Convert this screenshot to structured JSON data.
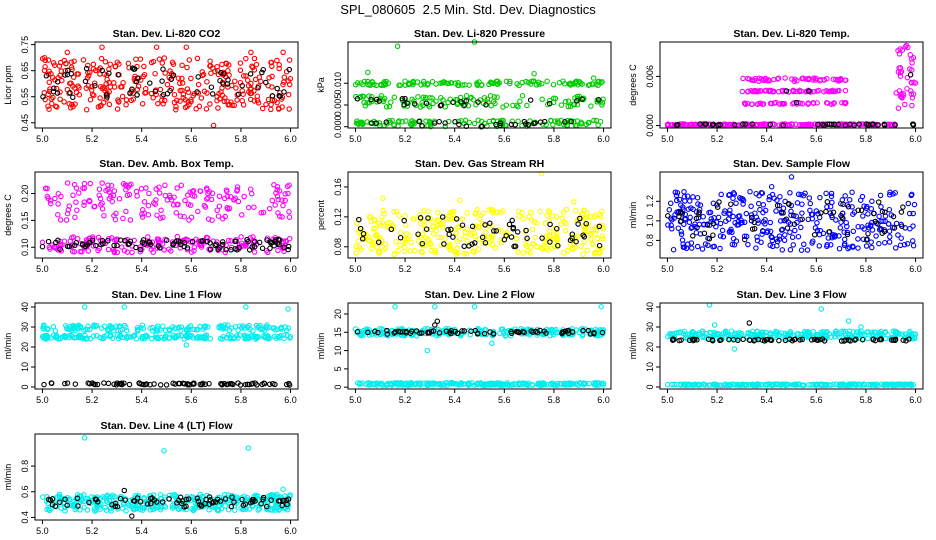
{
  "page_title": "SPL_080605  2.5 Min. Std. Dev. Diagnostics",
  "colors": {
    "red": "#ff0000",
    "green": "#00cc00",
    "magenta": "#ff00ff",
    "yellow": "#ffff00",
    "blue": "#0000ff",
    "cyan": "#00eeee",
    "black": "#000000"
  },
  "chart_data": [
    {
      "type": "scatter",
      "title": "Stan. Dev. Li-820 CO2",
      "ylabel": "Licor ppm",
      "xlabel": "",
      "xlim": [
        4.97,
        6.03
      ],
      "ylim": [
        0.43,
        0.76
      ],
      "xticks": [
        "5.0",
        "5.2",
        "5.4",
        "5.6",
        "5.8",
        "6.0"
      ],
      "yticks": [
        "0.45",
        "0.55",
        "0.65",
        "0.75"
      ],
      "series": [
        {
          "name": "main",
          "color": "#ff0000",
          "points": 330,
          "bands": [
            [
              0.5,
              0.7
            ]
          ],
          "outliers": [
            [
              5.1,
              0.72
            ],
            [
              5.24,
              0.74
            ],
            [
              5.46,
              0.74
            ],
            [
              5.58,
              0.74
            ],
            [
              5.69,
              0.44
            ],
            [
              5.84,
              0.72
            ],
            [
              5.97,
              0.72
            ]
          ]
        },
        {
          "name": "overlay",
          "color": "#000000",
          "points": 60,
          "bands": [
            [
              0.54,
              0.66
            ]
          ]
        }
      ]
    },
    {
      "type": "scatter",
      "title": "Stan. Dev. Li-820 Pressure",
      "ylabel": "kPa",
      "xlabel": "",
      "xlim": [
        4.97,
        6.03
      ],
      "ylim": [
        -0.0003,
        0.0195
      ],
      "xticks": [
        "5.0",
        "5.2",
        "5.4",
        "5.6",
        "5.8",
        "6.0"
      ],
      "yticks": [
        "0.000",
        "0.005",
        "0.010"
      ],
      "series": [
        {
          "name": "main",
          "color": "#00cc00",
          "points": 340,
          "bands": [
            [
              0.0,
              0.0015
            ],
            [
              0.0045,
              0.0072
            ],
            [
              0.0095,
              0.0105
            ]
          ],
          "outliers": [
            [
              5.05,
              0.0125
            ],
            [
              5.17,
              0.0185
            ],
            [
              5.48,
              0.0195
            ],
            [
              5.72,
              0.0122
            ],
            [
              5.96,
              0.0112
            ]
          ]
        },
        {
          "name": "overlay",
          "color": "#000000",
          "points": 50,
          "bands": [
            [
              0.0,
              0.0012
            ],
            [
              0.0048,
              0.0065
            ]
          ]
        }
      ]
    },
    {
      "type": "scatter",
      "title": "Stan. Dev. Li-820 Temp.",
      "ylabel": "degrees C",
      "xlabel": "",
      "xlim": [
        4.97,
        6.03
      ],
      "ylim": [
        -0.0003,
        0.0102
      ],
      "xticks": [
        "5.0",
        "5.2",
        "5.4",
        "5.6",
        "5.8",
        "6.0"
      ],
      "yticks": [
        "0.000",
        "0.006"
      ],
      "series": [
        {
          "name": "baseline",
          "color": "#ff00ff",
          "points": 200,
          "xrange": [
            5.0,
            5.92
          ],
          "bands": [
            [
              0.0,
              0.0002
            ]
          ]
        },
        {
          "name": "middle",
          "color": "#ff00ff",
          "points": 150,
          "xrange": [
            5.3,
            5.72
          ],
          "bands": [
            [
              0.0026,
              0.0028
            ],
            [
              0.0041,
              0.0043
            ],
            [
              0.0054,
              0.0058
            ]
          ]
        },
        {
          "name": "right",
          "color": "#ff00ff",
          "points": 40,
          "xrange": [
            5.92,
            6.0
          ],
          "bands": [
            [
              0.002,
              0.0098
            ]
          ]
        },
        {
          "name": "overlay",
          "color": "#000000",
          "points": 40,
          "bands": [
            [
              0.0,
              0.0002
            ]
          ],
          "outliers": [
            [
              5.48,
              0.0042
            ],
            [
              5.52,
              0.0028
            ],
            [
              5.57,
              0.0042
            ],
            [
              5.98,
              0.0062
            ]
          ]
        }
      ]
    },
    {
      "type": "scatter",
      "title": "Stan. Dev. Amb. Box Temp.",
      "ylabel": "degrees C",
      "xlabel": "",
      "xlim": [
        4.97,
        6.03
      ],
      "ylim": [
        0.08,
        0.24
      ],
      "xticks": [
        "5.0",
        "5.2",
        "5.4",
        "5.6",
        "5.8",
        "6.0"
      ],
      "yticks": [
        "0.10",
        "0.15",
        "0.20"
      ],
      "series": [
        {
          "name": "main",
          "color": "#ff00ff",
          "points": 360,
          "bands": [
            [
              0.09,
              0.12
            ],
            [
              0.15,
              0.22
            ]
          ]
        },
        {
          "name": "overlay",
          "color": "#000000",
          "points": 90,
          "bands": [
            [
              0.095,
              0.115
            ]
          ]
        }
      ]
    },
    {
      "type": "scatter",
      "title": "Stan. Dev. Gas Stream RH",
      "ylabel": "percent",
      "xlabel": "",
      "xlim": [
        4.97,
        6.03
      ],
      "ylim": [
        0.065,
        0.18
      ],
      "xticks": [
        "5.0",
        "5.2",
        "5.4",
        "5.6",
        "5.8",
        "6.0"
      ],
      "yticks": [
        "0.08",
        "0.12",
        "0.16"
      ],
      "series": [
        {
          "name": "main",
          "color": "#ffff00",
          "points": 340,
          "bands": [
            [
              0.07,
              0.13
            ]
          ],
          "outliers": [
            [
              5.75,
              0.178
            ],
            [
              5.11,
              0.145
            ],
            [
              5.42,
              0.142
            ],
            [
              5.88,
              0.14
            ]
          ]
        },
        {
          "name": "overlay",
          "color": "#000000",
          "points": 60,
          "bands": [
            [
              0.08,
              0.12
            ]
          ]
        }
      ]
    },
    {
      "type": "scatter",
      "title": "Stan. Dev. Sample Flow",
      "ylabel": "ml/min",
      "xlabel": "",
      "xlim": [
        4.97,
        6.03
      ],
      "ylim": [
        0.62,
        1.5
      ],
      "xticks": [
        "5.0",
        "5.2",
        "5.4",
        "5.6",
        "5.8",
        "6.0"
      ],
      "yticks": [
        "0.8",
        "1.0",
        "1.2"
      ],
      "series": [
        {
          "name": "main",
          "color": "#0000ff",
          "points": 360,
          "bands": [
            [
              0.7,
              1.3
            ]
          ],
          "outliers": [
            [
              5.5,
              1.45
            ],
            [
              5.42,
              1.35
            ]
          ]
        },
        {
          "name": "overlay",
          "color": "#000000",
          "points": 60,
          "bands": [
            [
              0.8,
              1.2
            ]
          ]
        }
      ]
    },
    {
      "type": "scatter",
      "title": "Stan. Dev. Line 1 Flow",
      "ylabel": "ml/min",
      "xlabel": "",
      "xlim": [
        4.97,
        6.03
      ],
      "ylim": [
        -1,
        42
      ],
      "xticks": [
        "5.0",
        "5.2",
        "5.4",
        "5.6",
        "5.8",
        "6.0"
      ],
      "yticks": [
        "0",
        "10",
        "20",
        "30",
        "40"
      ],
      "series": [
        {
          "name": "main",
          "color": "#00eeee",
          "points": 330,
          "bands": [
            [
              24,
              26
            ],
            [
              28,
              31
            ]
          ],
          "outliers": [
            [
              5.17,
              40
            ],
            [
              5.33,
              40
            ],
            [
              5.58,
              21
            ],
            [
              5.82,
              40
            ],
            [
              5.99,
              39
            ]
          ]
        },
        {
          "name": "overlay",
          "color": "#000000",
          "points": 80,
          "bands": [
            [
              1,
              2
            ]
          ]
        }
      ]
    },
    {
      "type": "scatter",
      "title": "Stan. Dev. Line 2 Flow",
      "ylabel": "ml/min",
      "xlabel": "",
      "xlim": [
        4.97,
        6.03
      ],
      "ylim": [
        -0.5,
        23
      ],
      "xticks": [
        "5.0",
        "5.2",
        "5.4",
        "5.6",
        "5.8",
        "6.0"
      ],
      "yticks": [
        "0",
        "5",
        "10",
        "15",
        "20"
      ],
      "series": [
        {
          "name": "top",
          "color": "#00eeee",
          "points": 260,
          "bands": [
            [
              14,
              16
            ]
          ],
          "outliers": [
            [
              5.16,
              22
            ],
            [
              5.29,
              10
            ],
            [
              5.32,
              22
            ],
            [
              5.48,
              22
            ],
            [
              5.55,
              12
            ],
            [
              5.99,
              22
            ]
          ]
        },
        {
          "name": "bottom",
          "color": "#00eeee",
          "points": 240,
          "bands": [
            [
              0.5,
              1.2
            ]
          ]
        },
        {
          "name": "overlay",
          "color": "#000000",
          "points": 70,
          "bands": [
            [
              14.5,
              15.5
            ]
          ],
          "outliers": [
            [
              5.32,
              17
            ],
            [
              5.33,
              18
            ]
          ]
        }
      ]
    },
    {
      "type": "scatter",
      "title": "Stan. Dev. Line 3 Flow",
      "ylabel": "ml/min",
      "xlabel": "",
      "xlim": [
        4.97,
        6.03
      ],
      "ylim": [
        -1,
        42
      ],
      "xticks": [
        "5.0",
        "5.2",
        "5.4",
        "5.6",
        "5.8",
        "6.0"
      ],
      "yticks": [
        "0",
        "10",
        "20",
        "30",
        "40"
      ],
      "series": [
        {
          "name": "top",
          "color": "#00eeee",
          "points": 260,
          "bands": [
            [
              24,
              28
            ]
          ],
          "outliers": [
            [
              5.17,
              41
            ],
            [
              5.19,
              31
            ],
            [
              5.27,
              19
            ],
            [
              5.62,
              39
            ],
            [
              5.73,
              33
            ],
            [
              5.78,
              30
            ]
          ]
        },
        {
          "name": "bottom",
          "color": "#00eeee",
          "points": 240,
          "bands": [
            [
              0.8,
              1.5
            ]
          ]
        },
        {
          "name": "overlay",
          "color": "#000000",
          "points": 70,
          "bands": [
            [
              23,
              24
            ]
          ],
          "outliers": [
            [
              5.33,
              32
            ]
          ]
        }
      ]
    },
    {
      "type": "scatter",
      "title": "Stan. Dev. Line 4 (LT) Flow",
      "ylabel": "ml/min",
      "xlabel": "",
      "xlim": [
        4.97,
        6.03
      ],
      "ylim": [
        0.38,
        1.05
      ],
      "xticks": [
        "5.0",
        "5.2",
        "5.4",
        "5.6",
        "5.8",
        "6.0"
      ],
      "yticks": [
        "0.4",
        "0.6",
        "0.8"
      ],
      "series": [
        {
          "name": "main",
          "color": "#00eeee",
          "points": 340,
          "bands": [
            [
              0.45,
              0.58
            ]
          ],
          "outliers": [
            [
              5.17,
              1.02
            ],
            [
              5.49,
              0.92
            ],
            [
              5.83,
              0.94
            ],
            [
              5.97,
              0.62
            ]
          ]
        },
        {
          "name": "overlay",
          "color": "#000000",
          "points": 80,
          "bands": [
            [
              0.48,
              0.56
            ]
          ],
          "outliers": [
            [
              5.33,
              0.61
            ],
            [
              5.36,
              0.41
            ]
          ]
        }
      ]
    }
  ]
}
